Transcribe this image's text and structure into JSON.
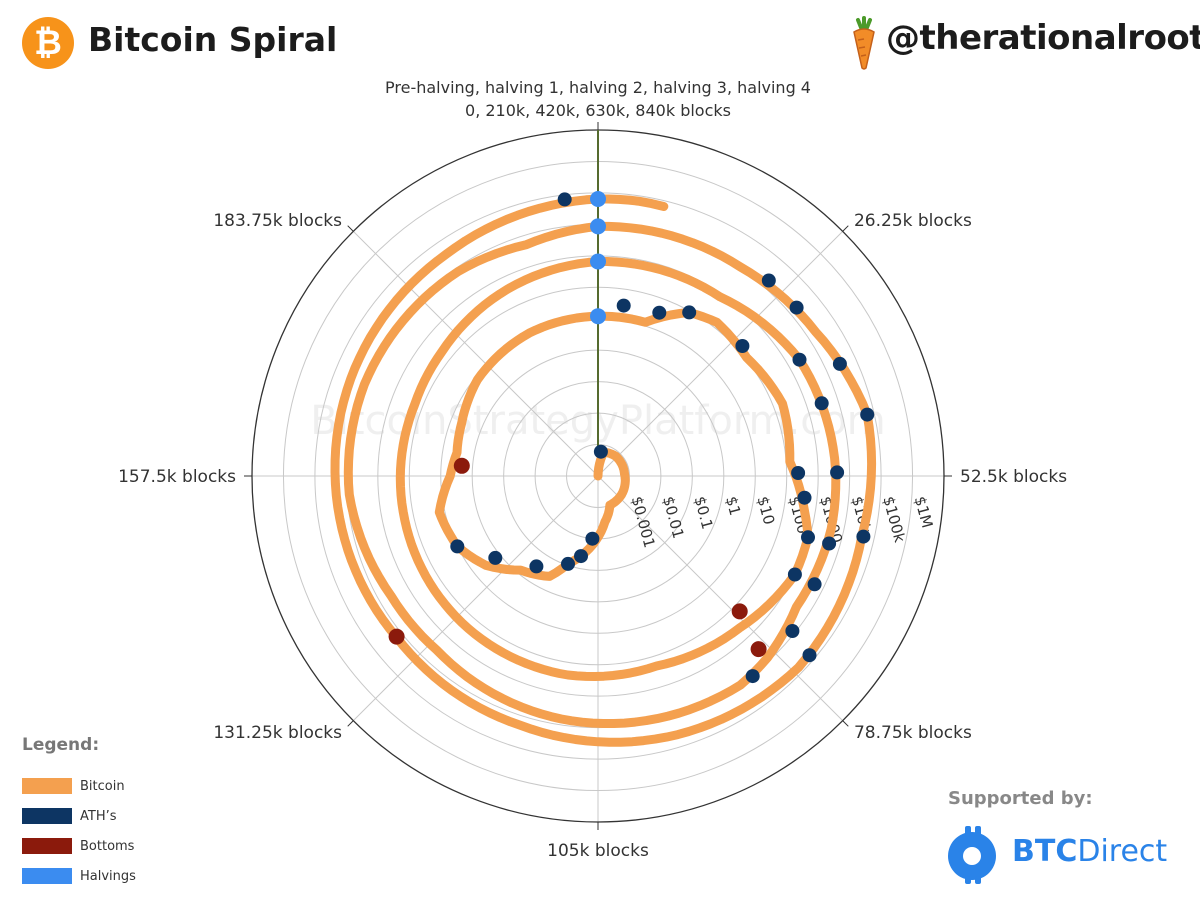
{
  "header": {
    "logo_glyph": "₿",
    "title": "Bitcoin Spiral",
    "handle": "@therationalroot"
  },
  "colors": {
    "bitcoin": "#f4a04f",
    "ath": "#0d3563",
    "bottoms": "#8b1a0c",
    "halvings": "#3b8cf0",
    "halving_axis": "#556b2f",
    "grid": "#c8c8c8",
    "outer_ring": "#333333"
  },
  "watermark": "BitcoinStrategyPlatform.com",
  "legend": {
    "title": "Legend:",
    "items": [
      {
        "label": "Bitcoin",
        "color": "#f4a04f"
      },
      {
        "label": "ATH’s",
        "color": "#0d3563"
      },
      {
        "label": "Bottoms",
        "color": "#8b1a0c"
      },
      {
        "label": "Halvings",
        "color": "#3b8cf0"
      }
    ]
  },
  "sponsor": {
    "supported_label": "Supported by:",
    "name_bold": "BTC",
    "name_rest": "Direct"
  },
  "chart_data": {
    "type": "polar-line",
    "title_lines": [
      "Pre-halving, halving 1, halving 2, halving 3, halving 4",
      "0, 210k, 420k, 630k, 840k blocks"
    ],
    "angular_axis": {
      "unit": "blocks",
      "period": 210000,
      "direction": "clockwise",
      "rotation": "top",
      "tick_labels": [
        {
          "value": 0,
          "label": ""
        },
        {
          "value": 26250,
          "label": "26.25k blocks"
        },
        {
          "value": 52500,
          "label": "52.5k blocks"
        },
        {
          "value": 78750,
          "label": "78.75k blocks"
        },
        {
          "value": 105000,
          "label": "105k blocks"
        },
        {
          "value": 131250,
          "label": "131.25k blocks"
        },
        {
          "value": 157500,
          "label": "157.5k blocks"
        },
        {
          "value": 183750,
          "label": "183.75k blocks"
        }
      ]
    },
    "radial_axis": {
      "scale": "log",
      "range": [
        0.0001,
        10000000
      ],
      "tick_values": [
        0.001,
        0.01,
        0.1,
        1,
        10,
        100,
        1000,
        10000,
        100000,
        1000000
      ],
      "tick_labels": [
        "$0.001",
        "$0.01",
        "$0.1",
        "$1",
        "$10",
        "$100",
        "$1000",
        "$10k",
        "$100k",
        "$1M"
      ]
    },
    "grid": true,
    "legend_position": "bottom-left",
    "series": [
      {
        "name": "Bitcoin",
        "points": [
          {
            "block": 0,
            "price": 0.0001
          },
          {
            "block": 8000,
            "price": 0.0006
          },
          {
            "block": 25000,
            "price": 0.0007
          },
          {
            "block": 50000,
            "price": 0.0007
          },
          {
            "block": 75000,
            "price": 0.0009
          },
          {
            "block": 92000,
            "price": 0.001
          },
          {
            "block": 100000,
            "price": 0.003
          },
          {
            "block": 112000,
            "price": 0.04
          },
          {
            "block": 116000,
            "price": 0.09
          },
          {
            "block": 120000,
            "price": 0.35
          },
          {
            "block": 128000,
            "price": 0.75
          },
          {
            "block": 135000,
            "price": 3.6
          },
          {
            "block": 142000,
            "price": 10
          },
          {
            "block": 150000,
            "price": 15
          },
          {
            "block": 157500,
            "price": 5
          },
          {
            "block": 163000,
            "price": 3.5
          },
          {
            "block": 170000,
            "price": 4.5
          },
          {
            "block": 180000,
            "price": 8
          },
          {
            "block": 195000,
            "price": 11
          },
          {
            "block": 210000,
            "price": 12
          },
          {
            "block": 220000,
            "price": 13
          },
          {
            "block": 227000,
            "price": 90
          },
          {
            "block": 232000,
            "price": 150
          },
          {
            "block": 240000,
            "price": 110
          },
          {
            "block": 250000,
            "price": 200
          },
          {
            "block": 260000,
            "price": 130
          },
          {
            "block": 268000,
            "price": 450
          },
          {
            "block": 272000,
            "price": 900
          },
          {
            "block": 278000,
            "price": 1000
          },
          {
            "block": 290000,
            "price": 400
          },
          {
            "block": 305000,
            "price": 210
          },
          {
            "block": 320000,
            "price": 250
          },
          {
            "block": 340000,
            "price": 230
          },
          {
            "block": 360000,
            "price": 200
          },
          {
            "block": 380000,
            "price": 180
          },
          {
            "block": 390000,
            "price": 220
          },
          {
            "block": 405000,
            "price": 400
          },
          {
            "block": 420000,
            "price": 660
          },
          {
            "block": 440000,
            "price": 780
          },
          {
            "block": 455000,
            "price": 2500
          },
          {
            "block": 470000,
            "price": 3500
          },
          {
            "block": 480000,
            "price": 4000
          },
          {
            "block": 492000,
            "price": 3600
          },
          {
            "block": 500000,
            "price": 8000
          },
          {
            "block": 505000,
            "price": 11000
          },
          {
            "block": 520000,
            "price": 8200
          },
          {
            "block": 530000,
            "price": 6500
          },
          {
            "block": 550000,
            "price": 3500
          },
          {
            "block": 560000,
            "price": 4000
          },
          {
            "block": 575000,
            "price": 8500
          },
          {
            "block": 590000,
            "price": 9500
          },
          {
            "block": 610000,
            "price": 7500
          },
          {
            "block": 620000,
            "price": 5000
          },
          {
            "block": 630000,
            "price": 8600
          },
          {
            "block": 650000,
            "price": 11000
          },
          {
            "block": 663000,
            "price": 20000
          },
          {
            "block": 675000,
            "price": 60000
          },
          {
            "block": 690000,
            "price": 40000
          },
          {
            "block": 708000,
            "price": 65000
          },
          {
            "block": 725000,
            "price": 40000
          },
          {
            "block": 745000,
            "price": 20000
          },
          {
            "block": 765000,
            "price": 16000
          },
          {
            "block": 785000,
            "price": 22000
          },
          {
            "block": 800000,
            "price": 28000
          },
          {
            "block": 820000,
            "price": 35000
          },
          {
            "block": 840000,
            "price": 64000
          },
          {
            "block": 845000,
            "price": 68000
          },
          {
            "block": 848000,
            "price": 66000
          }
        ]
      },
      {
        "name": "ATH’s",
        "points": [
          {
            "block": 4000,
            "price": 0.0006
          },
          {
            "block": 108000,
            "price": 0.01
          },
          {
            "block": 112000,
            "price": 0.04
          },
          {
            "block": 116000,
            "price": 0.09
          },
          {
            "block": 125000,
            "price": 0.3
          },
          {
            "block": 135000,
            "price": 1.5
          },
          {
            "block": 142000,
            "price": 10
          },
          {
            "block": 215000,
            "price": 30
          },
          {
            "block": 222000,
            "price": 35
          },
          {
            "block": 227000,
            "price": 90
          },
          {
            "block": 238000,
            "price": 150
          },
          {
            "block": 262000,
            "price": 230
          },
          {
            "block": 266000,
            "price": 400
          },
          {
            "block": 272000,
            "price": 900
          },
          {
            "block": 278000,
            "price": 1000
          },
          {
            "block": 455000,
            "price": 2500
          },
          {
            "block": 462000,
            "price": 3000
          },
          {
            "block": 472000,
            "price": 4000
          },
          {
            "block": 482000,
            "price": 4500
          },
          {
            "block": 488000,
            "price": 5000
          },
          {
            "block": 495000,
            "price": 8000
          },
          {
            "block": 503000,
            "price": 11000
          },
          {
            "block": 654000,
            "price": 18000
          },
          {
            "block": 659000,
            "price": 19000
          },
          {
            "block": 668000,
            "price": 30000
          },
          {
            "block": 675000,
            "price": 60000
          },
          {
            "block": 690000,
            "price": 45000
          },
          {
            "block": 706000,
            "price": 65000
          },
          {
            "block": 836000,
            "price": 72000
          }
        ]
      },
      {
        "name": "Bottoms",
        "points": [
          {
            "block": 160000,
            "price": 2.2
          },
          {
            "block": 288000,
            "price": 170
          },
          {
            "block": 500000,
            "price": 3200
          },
          {
            "block": 765000,
            "price": 15500
          }
        ]
      },
      {
        "name": "Halvings",
        "points": [
          {
            "block": 210000,
            "price": 12
          },
          {
            "block": 420000,
            "price": 660
          },
          {
            "block": 630000,
            "price": 8600
          },
          {
            "block": 840000,
            "price": 64000
          }
        ]
      }
    ]
  }
}
